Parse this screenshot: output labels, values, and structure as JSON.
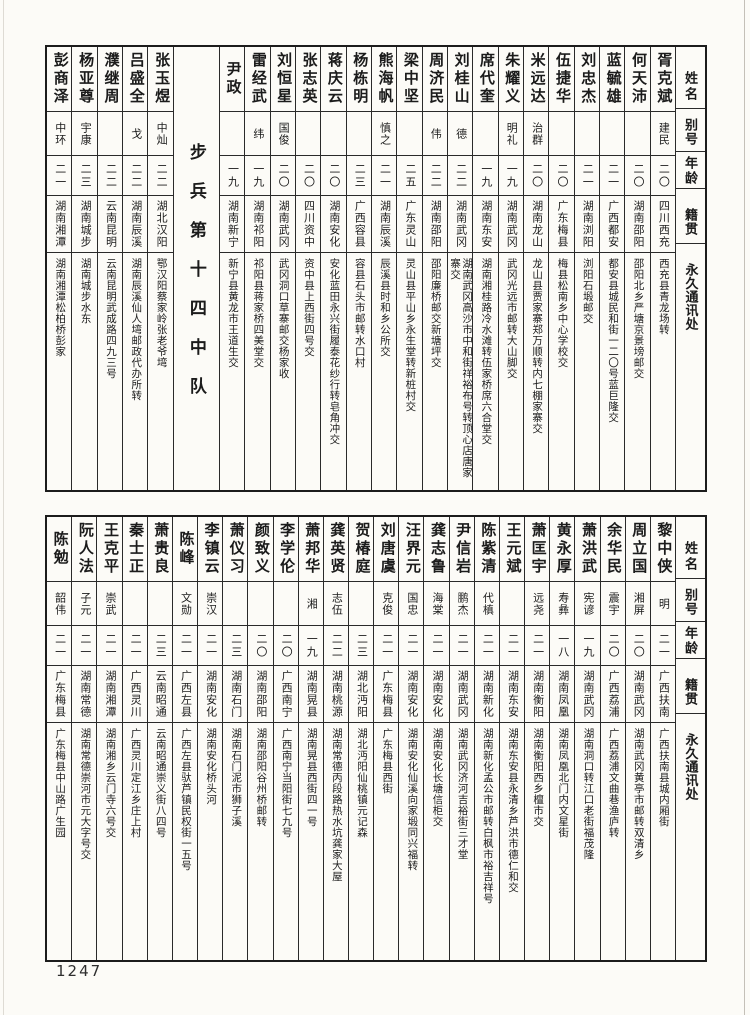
{
  "colors": {
    "paper": "#fcfbf7",
    "ink": "#1b1b1b",
    "rule": "#2a2a2a"
  },
  "page": {
    "number": "1247"
  },
  "headers": {
    "name": "姓名",
    "alias": "别号",
    "age": "年龄",
    "origin": "籍贯",
    "address": "永久通讯处"
  },
  "top_table": {
    "columns": [
      {
        "name": "胥克斌",
        "alias": "建民",
        "age": "二〇",
        "origin": "四川西充",
        "address": "西充县青龙场转"
      },
      {
        "name": "何天沛",
        "alias": "",
        "age": "二〇",
        "origin": "湖南邵阳",
        "address": "邵阳北乡严塘京景塝邮交"
      },
      {
        "name": "蓝毓雄",
        "alias": "",
        "age": "二一",
        "origin": "广西都安",
        "address": "都安县城民和街一二〇号蓝巨隆交"
      },
      {
        "name": "刘忠杰",
        "alias": "",
        "age": "二一",
        "origin": "湖南浏阳",
        "address": "浏阳石塅邮交"
      },
      {
        "name": "伍捷华",
        "alias": "",
        "age": "二〇",
        "origin": "广东梅县",
        "address": "梅县松南乡中心学校交"
      },
      {
        "name": "米远达",
        "alias": "治群",
        "age": "二〇",
        "origin": "湖南龙山",
        "address": "龙山县贾家寨郑万顺转内七棚家寨交"
      },
      {
        "name": "朱耀义",
        "alias": "明礼",
        "age": "一九",
        "origin": "湖南武冈",
        "address": "武冈光远市邮转大山脚交"
      },
      {
        "name": "席代奎",
        "alias": "",
        "age": "一九",
        "origin": "湖南东安",
        "address": "湖南湘桂路冷水滩转伍家桥席六合堂交"
      },
      {
        "name": "刘桂山",
        "alias": "德",
        "age": "二二",
        "origin": "湖南武冈",
        "address": "湖南武冈高沙市中和街祥裕布号转顶心店唐家寨交"
      },
      {
        "name": "周济民",
        "alias": "伟",
        "age": "二二",
        "origin": "湖南邵阳",
        "address": "邵阳廉桥邮交新塘坪交"
      },
      {
        "name": "梁中坚",
        "alias": "",
        "age": "二五",
        "origin": "广东灵山",
        "address": "灵山县平山乡永生堂转新桩村交"
      },
      {
        "name": "熊海帆",
        "alias": "慎之",
        "age": "二一",
        "origin": "湖南辰溪",
        "address": "辰溪县时和乡公所交"
      },
      {
        "name": "杨栋明",
        "alias": "",
        "age": "二三",
        "origin": "广西容县",
        "address": "容县石头市邮转水口村"
      },
      {
        "name": "蒋庆云",
        "alias": "",
        "age": "二〇",
        "origin": "湖南安化",
        "address": "安化蓝田永兴街履泰花纱行转皂角冲交"
      },
      {
        "name": "张志英",
        "alias": "",
        "age": "二〇",
        "origin": "四川资中",
        "address": "资中县上西街四号交"
      },
      {
        "name": "刘恒星",
        "alias": "国俊",
        "age": "二〇",
        "origin": "湖南武冈",
        "address": "武冈洞口草寨邮交杨家收"
      },
      {
        "name": "雷经武",
        "alias": "纬",
        "age": "一九",
        "origin": "湖南祁阳",
        "address": "祁阳县蒋家桥四美堂交"
      },
      {
        "name": "尹政",
        "alias": "",
        "age": "一九",
        "origin": "湖南新宁",
        "address": "新宁县黄龙市王道生交"
      },
      {
        "unit": "步兵第十四中队"
      },
      {
        "name": "张玉煜",
        "alias": "中灿",
        "age": "二二",
        "origin": "湖北汉阳",
        "address": "鄂汉阳蔡家岭张老爷塆"
      },
      {
        "name": "吕盛全",
        "alias": "戈",
        "age": "二二",
        "origin": "湖南辰溪",
        "address": "湖南辰溪仙人塆邮政代办所转"
      },
      {
        "name": "濮继周",
        "alias": "",
        "age": "二二",
        "origin": "云南昆明",
        "address": "云南昆明武成路四九三号"
      },
      {
        "name": "杨亚尊",
        "alias": "宇康",
        "age": "二三",
        "origin": "湖南城步",
        "address": "湖南城步水东"
      },
      {
        "name": "彭商泽",
        "alias": "中环",
        "age": "二一",
        "origin": "湖南湘潭",
        "address": "湖南湘潭松柏桥彭家"
      }
    ]
  },
  "bottom_table": {
    "columns": [
      {
        "name": "黎中侠",
        "alias": "明",
        "age": "二一",
        "origin": "广西扶南",
        "address": "广西扶南县城内厢街"
      },
      {
        "name": "周立国",
        "alias": "湘屏",
        "age": "二〇",
        "origin": "湖南武冈",
        "address": "湖南武冈黄亭市邮转双清乡"
      },
      {
        "name": "余华民",
        "alias": "震宇",
        "age": "二〇",
        "origin": "广西荔浦",
        "address": "广西荔浦文曲巷渔庐转"
      },
      {
        "name": "萧洪武",
        "alias": "宪谚",
        "age": "一九",
        "origin": "湖南武冈",
        "address": "湖南洞口转江口老街福茂隆"
      },
      {
        "name": "黄永厚",
        "alias": "寿彝",
        "age": "一八",
        "origin": "湖南凤凰",
        "address": "湖南凤凰北门内文星街"
      },
      {
        "name": "萧匡宇",
        "alias": "远尧",
        "age": "二一",
        "origin": "湖南衡阳",
        "address": "湖南衡阳西乡檀市交"
      },
      {
        "name": "王元斌",
        "alias": "",
        "age": "二一",
        "origin": "湖南东安",
        "address": "湖南东安县永清乡芦洪市德仁和交"
      },
      {
        "name": "陈紫清",
        "alias": "代槙",
        "age": "二一",
        "origin": "湖南新化",
        "address": "湖南新化孟公市邮转白枫市裕吉祥号"
      },
      {
        "name": "尹信岩",
        "alias": "鹏杰",
        "age": "二一",
        "origin": "湖南武冈",
        "address": "湖南武冈济河吉裕街三才堂"
      },
      {
        "name": "龚志鲁",
        "alias": "海棠",
        "age": "二一",
        "origin": "湖南安化",
        "address": "湖南安化长塘信柜交"
      },
      {
        "name": "汪界元",
        "alias": "国忠",
        "age": "二一",
        "origin": "湖南安化",
        "address": "湖南安化仙溪向家塅同兴福转"
      },
      {
        "name": "刘唐虞",
        "alias": "克俊",
        "age": "二一",
        "origin": "广东梅县",
        "address": "广东梅县西街"
      },
      {
        "name": "贺椿庭",
        "alias": "",
        "age": "二三",
        "origin": "湖北沔阳",
        "address": "湖北沔阳仙桃镇元记森"
      },
      {
        "name": "龚英贤",
        "alias": "志伍",
        "age": "二二",
        "origin": "湖南桃源",
        "address": "湖南常德丙段路热水坑龚家大屋"
      },
      {
        "name": "萧邦华",
        "alias": "湘",
        "age": "一九",
        "origin": "湖南晃县",
        "address": "湖南晃县西街四一号"
      },
      {
        "name": "李学伦",
        "alias": "",
        "age": "二〇",
        "origin": "广西南宁",
        "address": "广西南宁当阳街七九号"
      },
      {
        "name": "颜致义",
        "alias": "",
        "age": "二〇",
        "origin": "湖南邵阳",
        "address": "湖南邵阳谷州桥邮转"
      },
      {
        "name": "萧仪习",
        "alias": "",
        "age": "二三",
        "origin": "湖南石门",
        "address": "湖南石门泥市狮子溪"
      },
      {
        "name": "李镇云",
        "alias": "崇汉",
        "age": "二一",
        "origin": "湖南安化",
        "address": "湖南安化桥头河"
      },
      {
        "name": "陈峰",
        "alias": "文勋",
        "age": "二一",
        "origin": "广西左县",
        "address": "广西左县驮芦镇民权街一五号"
      },
      {
        "name": "萧贵良",
        "alias": "",
        "age": "二三",
        "origin": "云南昭通",
        "address": "云南昭通崇义街八四号"
      },
      {
        "name": "秦士正",
        "alias": "",
        "age": "二一",
        "origin": "广西灵川",
        "address": "广西灵川定江乡庄上村"
      },
      {
        "name": "王克平",
        "alias": "崇武",
        "age": "二一",
        "origin": "湖南湘潭",
        "address": "湖南湘乡云门寺六号交"
      },
      {
        "name": "阮人法",
        "alias": "子元",
        "age": "二一",
        "origin": "湖南常德",
        "address": "湖南常德崇河市元大字号交"
      },
      {
        "name": "陈勉",
        "alias": "韶伟",
        "age": "二一",
        "origin": "广东梅县",
        "address": "广东梅县中山路广生园"
      }
    ]
  }
}
